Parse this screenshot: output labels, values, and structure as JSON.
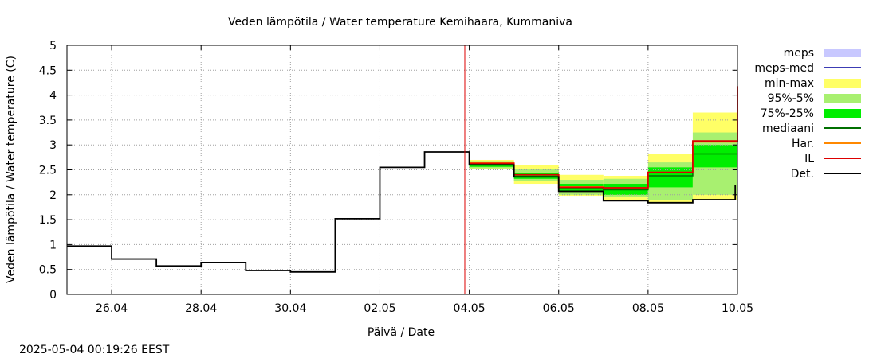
{
  "chart_data": {
    "type": "area",
    "title": "Veden lämpötila / Water temperature Kemihaara, Kummaniva",
    "xlabel": "Päivä / Date",
    "ylabel": "Veden lämpötila / Water temperature (C)",
    "timestamp": "2025-05-04 00:19:26 EEST",
    "xlim": [
      0,
      15
    ],
    "ylim": [
      0,
      5
    ],
    "x_tick_values": [
      1,
      3,
      5,
      7,
      9,
      11,
      13,
      15
    ],
    "x_tick_labels": [
      "26.04",
      "28.04",
      "30.04",
      "02.05",
      "04.05",
      "06.05",
      "08.05",
      "10.05"
    ],
    "y_ticks": [
      0,
      0.5,
      1,
      1.5,
      2,
      2.5,
      3,
      3.5,
      4,
      4.5,
      5
    ],
    "y_tick_labels": [
      "0",
      "0.5",
      "1",
      "1.5",
      "2",
      "2.5",
      "3",
      "3.5",
      "4",
      "4.5",
      "5"
    ],
    "now_x": 8.9,
    "colors": {
      "meps": "#c8c8ff",
      "meps_med": "#3c3cb4",
      "minmax": "#ffff66",
      "p95_5": "#a8f070",
      "p75_25": "#00ee00",
      "median": "#007000",
      "har": "#ff8800",
      "il": "#dd0000",
      "det": "#000000",
      "now_line": "#dd0000",
      "grid": "#a0a0a0"
    },
    "legend": [
      {
        "key": "meps",
        "label": "meps",
        "style": "band"
      },
      {
        "key": "meps_med",
        "label": "meps-med",
        "style": "line"
      },
      {
        "key": "minmax",
        "label": "min-max",
        "style": "band"
      },
      {
        "key": "p95_5",
        "label": "95%-5%",
        "style": "band"
      },
      {
        "key": "p75_25",
        "label": "75%-25%",
        "style": "band"
      },
      {
        "key": "median",
        "label": "mediaani",
        "style": "line"
      },
      {
        "key": "har",
        "label": "Har.",
        "style": "line"
      },
      {
        "key": "il",
        "label": "IL",
        "style": "line"
      },
      {
        "key": "det",
        "label": "Det.",
        "style": "line"
      }
    ],
    "det_steps": [
      [
        0,
        0.97
      ],
      [
        1,
        0.71
      ],
      [
        2,
        0.57
      ],
      [
        3,
        0.64
      ],
      [
        4,
        0.48
      ],
      [
        5,
        0.45
      ],
      [
        6,
        1.52
      ],
      [
        7,
        2.55
      ],
      [
        8,
        2.86
      ],
      [
        9,
        2.6
      ],
      [
        10,
        2.36
      ],
      [
        11,
        2.07
      ],
      [
        12,
        1.88
      ],
      [
        13,
        1.84
      ],
      [
        14,
        1.9
      ]
    ],
    "det_end": [
      14.95,
      2.2
    ],
    "forecast_steps": [
      {
        "x0": 9,
        "x1": 10,
        "min": 2.52,
        "p5": 2.53,
        "p25": 2.56,
        "p75": 2.62,
        "p95": 2.66,
        "max": 2.7,
        "median": 2.6,
        "har": 2.64,
        "il": 2.63
      },
      {
        "x0": 10,
        "x1": 11,
        "min": 2.22,
        "p5": 2.27,
        "p25": 2.32,
        "p75": 2.44,
        "p95": 2.52,
        "max": 2.6,
        "median": 2.36,
        "har": 2.4,
        "il": 2.4
      },
      {
        "x0": 11,
        "x1": 12,
        "min": 1.98,
        "p5": 2.0,
        "p25": 2.07,
        "p75": 2.22,
        "p95": 2.3,
        "max": 2.4,
        "median": 2.12,
        "har": 2.16,
        "il": 2.15
      },
      {
        "x0": 12,
        "x1": 13,
        "min": 1.9,
        "p5": 1.95,
        "p25": 2.0,
        "p75": 2.22,
        "p95": 2.32,
        "max": 2.38,
        "median": 2.1,
        "har": 2.14,
        "il": 2.14
      },
      {
        "x0": 13,
        "x1": 14,
        "min": 1.85,
        "p5": 1.9,
        "p25": 2.15,
        "p75": 2.55,
        "p95": 2.65,
        "max": 2.82,
        "median": 2.38,
        "har": 2.45,
        "il": 2.45
      },
      {
        "x0": 14,
        "x1": 15,
        "min": 1.9,
        "p5": 2.0,
        "p25": 2.55,
        "p75": 3.0,
        "p95": 3.25,
        "max": 3.65,
        "median": 2.82,
        "har": 3.06,
        "il": 3.08
      }
    ],
    "il_end": [
      15,
      4.18
    ]
  }
}
